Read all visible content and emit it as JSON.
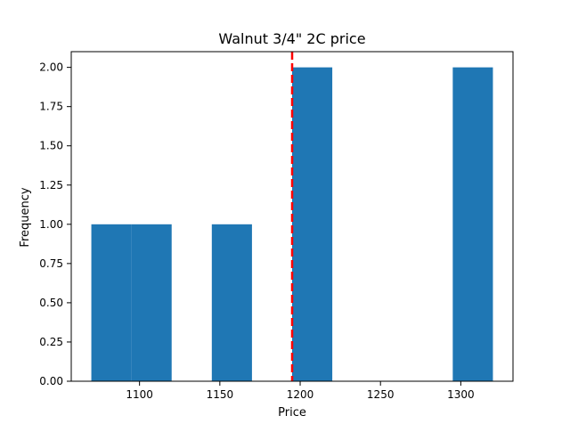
{
  "chart_data": {
    "type": "histogram",
    "title": "Walnut 3/4\" 2C price",
    "xlabel": "Price",
    "ylabel": "Frequency",
    "xlim": [
      1057.5,
      1332.5
    ],
    "ylim": [
      0,
      2.1
    ],
    "x_ticks": [
      1100,
      1150,
      1200,
      1250,
      1300
    ],
    "y_ticks": [
      0.0,
      0.25,
      0.5,
      0.75,
      1.0,
      1.25,
      1.5,
      1.75,
      2.0
    ],
    "x_tick_labels": [
      "1100",
      "1150",
      "1200",
      "1250",
      "1300"
    ],
    "y_tick_labels": [
      "0.00",
      "0.25",
      "0.50",
      "0.75",
      "1.00",
      "1.25",
      "1.50",
      "1.75",
      "2.00"
    ],
    "bins": [
      {
        "start": 1070,
        "end": 1095,
        "count": 1
      },
      {
        "start": 1095,
        "end": 1120,
        "count": 1
      },
      {
        "start": 1145,
        "end": 1170,
        "count": 1
      },
      {
        "start": 1195,
        "end": 1220,
        "count": 2
      },
      {
        "start": 1295,
        "end": 1320,
        "count": 2
      }
    ],
    "reference_line": {
      "x": 1195,
      "style": "dashed",
      "color": "#ff0000"
    },
    "bar_color": "#1f77b4",
    "grid": false,
    "legend": "none"
  }
}
